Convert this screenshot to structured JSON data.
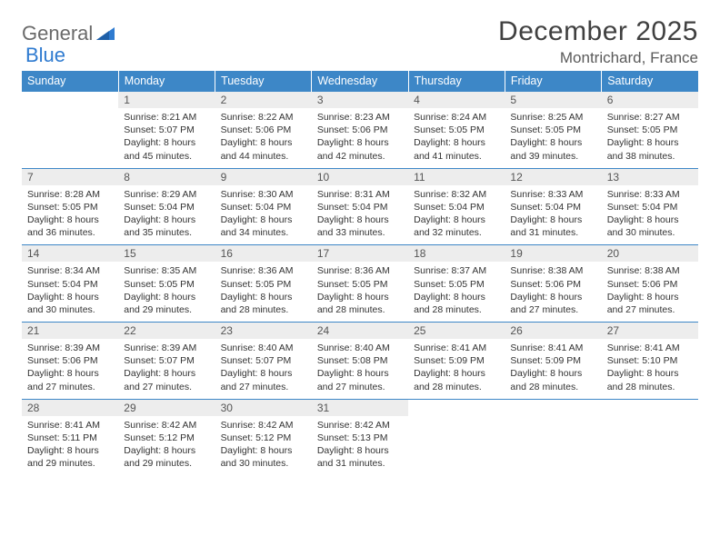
{
  "brand": {
    "part1": "General",
    "part2": "Blue"
  },
  "title": "December 2025",
  "location": "Montrichard, France",
  "colors": {
    "header_bg": "#3d87c7",
    "header_text": "#ffffff",
    "daynum_bg": "#ededed",
    "border": "#3d87c7",
    "body_text": "#333333",
    "title_text": "#404040",
    "logo_gray": "#6a6a6a",
    "logo_blue": "#2f7bd0"
  },
  "day_headers": [
    "Sunday",
    "Monday",
    "Tuesday",
    "Wednesday",
    "Thursday",
    "Friday",
    "Saturday"
  ],
  "weeks": [
    [
      {
        "n": "",
        "sr": "",
        "ss": "",
        "dl": ""
      },
      {
        "n": "1",
        "sr": "Sunrise: 8:21 AM",
        "ss": "Sunset: 5:07 PM",
        "dl": "Daylight: 8 hours and 45 minutes."
      },
      {
        "n": "2",
        "sr": "Sunrise: 8:22 AM",
        "ss": "Sunset: 5:06 PM",
        "dl": "Daylight: 8 hours and 44 minutes."
      },
      {
        "n": "3",
        "sr": "Sunrise: 8:23 AM",
        "ss": "Sunset: 5:06 PM",
        "dl": "Daylight: 8 hours and 42 minutes."
      },
      {
        "n": "4",
        "sr": "Sunrise: 8:24 AM",
        "ss": "Sunset: 5:05 PM",
        "dl": "Daylight: 8 hours and 41 minutes."
      },
      {
        "n": "5",
        "sr": "Sunrise: 8:25 AM",
        "ss": "Sunset: 5:05 PM",
        "dl": "Daylight: 8 hours and 39 minutes."
      },
      {
        "n": "6",
        "sr": "Sunrise: 8:27 AM",
        "ss": "Sunset: 5:05 PM",
        "dl": "Daylight: 8 hours and 38 minutes."
      }
    ],
    [
      {
        "n": "7",
        "sr": "Sunrise: 8:28 AM",
        "ss": "Sunset: 5:05 PM",
        "dl": "Daylight: 8 hours and 36 minutes."
      },
      {
        "n": "8",
        "sr": "Sunrise: 8:29 AM",
        "ss": "Sunset: 5:04 PM",
        "dl": "Daylight: 8 hours and 35 minutes."
      },
      {
        "n": "9",
        "sr": "Sunrise: 8:30 AM",
        "ss": "Sunset: 5:04 PM",
        "dl": "Daylight: 8 hours and 34 minutes."
      },
      {
        "n": "10",
        "sr": "Sunrise: 8:31 AM",
        "ss": "Sunset: 5:04 PM",
        "dl": "Daylight: 8 hours and 33 minutes."
      },
      {
        "n": "11",
        "sr": "Sunrise: 8:32 AM",
        "ss": "Sunset: 5:04 PM",
        "dl": "Daylight: 8 hours and 32 minutes."
      },
      {
        "n": "12",
        "sr": "Sunrise: 8:33 AM",
        "ss": "Sunset: 5:04 PM",
        "dl": "Daylight: 8 hours and 31 minutes."
      },
      {
        "n": "13",
        "sr": "Sunrise: 8:33 AM",
        "ss": "Sunset: 5:04 PM",
        "dl": "Daylight: 8 hours and 30 minutes."
      }
    ],
    [
      {
        "n": "14",
        "sr": "Sunrise: 8:34 AM",
        "ss": "Sunset: 5:04 PM",
        "dl": "Daylight: 8 hours and 30 minutes."
      },
      {
        "n": "15",
        "sr": "Sunrise: 8:35 AM",
        "ss": "Sunset: 5:05 PM",
        "dl": "Daylight: 8 hours and 29 minutes."
      },
      {
        "n": "16",
        "sr": "Sunrise: 8:36 AM",
        "ss": "Sunset: 5:05 PM",
        "dl": "Daylight: 8 hours and 28 minutes."
      },
      {
        "n": "17",
        "sr": "Sunrise: 8:36 AM",
        "ss": "Sunset: 5:05 PM",
        "dl": "Daylight: 8 hours and 28 minutes."
      },
      {
        "n": "18",
        "sr": "Sunrise: 8:37 AM",
        "ss": "Sunset: 5:05 PM",
        "dl": "Daylight: 8 hours and 28 minutes."
      },
      {
        "n": "19",
        "sr": "Sunrise: 8:38 AM",
        "ss": "Sunset: 5:06 PM",
        "dl": "Daylight: 8 hours and 27 minutes."
      },
      {
        "n": "20",
        "sr": "Sunrise: 8:38 AM",
        "ss": "Sunset: 5:06 PM",
        "dl": "Daylight: 8 hours and 27 minutes."
      }
    ],
    [
      {
        "n": "21",
        "sr": "Sunrise: 8:39 AM",
        "ss": "Sunset: 5:06 PM",
        "dl": "Daylight: 8 hours and 27 minutes."
      },
      {
        "n": "22",
        "sr": "Sunrise: 8:39 AM",
        "ss": "Sunset: 5:07 PM",
        "dl": "Daylight: 8 hours and 27 minutes."
      },
      {
        "n": "23",
        "sr": "Sunrise: 8:40 AM",
        "ss": "Sunset: 5:07 PM",
        "dl": "Daylight: 8 hours and 27 minutes."
      },
      {
        "n": "24",
        "sr": "Sunrise: 8:40 AM",
        "ss": "Sunset: 5:08 PM",
        "dl": "Daylight: 8 hours and 27 minutes."
      },
      {
        "n": "25",
        "sr": "Sunrise: 8:41 AM",
        "ss": "Sunset: 5:09 PM",
        "dl": "Daylight: 8 hours and 28 minutes."
      },
      {
        "n": "26",
        "sr": "Sunrise: 8:41 AM",
        "ss": "Sunset: 5:09 PM",
        "dl": "Daylight: 8 hours and 28 minutes."
      },
      {
        "n": "27",
        "sr": "Sunrise: 8:41 AM",
        "ss": "Sunset: 5:10 PM",
        "dl": "Daylight: 8 hours and 28 minutes."
      }
    ],
    [
      {
        "n": "28",
        "sr": "Sunrise: 8:41 AM",
        "ss": "Sunset: 5:11 PM",
        "dl": "Daylight: 8 hours and 29 minutes."
      },
      {
        "n": "29",
        "sr": "Sunrise: 8:42 AM",
        "ss": "Sunset: 5:12 PM",
        "dl": "Daylight: 8 hours and 29 minutes."
      },
      {
        "n": "30",
        "sr": "Sunrise: 8:42 AM",
        "ss": "Sunset: 5:12 PM",
        "dl": "Daylight: 8 hours and 30 minutes."
      },
      {
        "n": "31",
        "sr": "Sunrise: 8:42 AM",
        "ss": "Sunset: 5:13 PM",
        "dl": "Daylight: 8 hours and 31 minutes."
      },
      {
        "n": "",
        "sr": "",
        "ss": "",
        "dl": ""
      },
      {
        "n": "",
        "sr": "",
        "ss": "",
        "dl": ""
      },
      {
        "n": "",
        "sr": "",
        "ss": "",
        "dl": ""
      }
    ]
  ]
}
